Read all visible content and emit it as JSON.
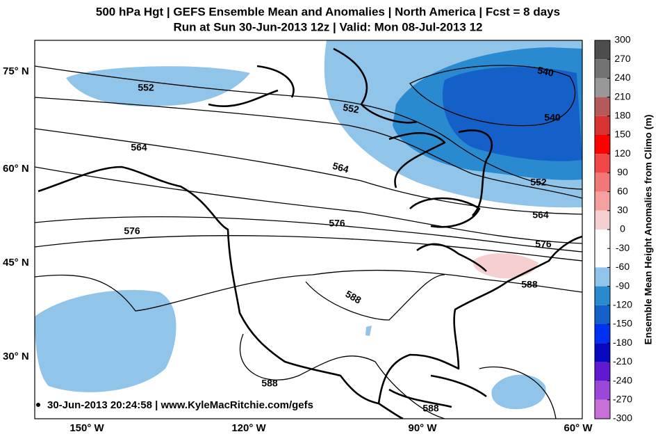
{
  "header": {
    "title": "500 hPa Hgt | GEFS Ensemble Mean and Anomalies | North America | Fcst = 8 days",
    "subtitle": "Run at Sun 30-Jun-2013 12z | Valid: Mon 08-Jul-2013 12"
  },
  "map": {
    "lat_labels": [
      "75° N",
      "60° N",
      "45° N",
      "30° N"
    ],
    "lon_labels": [
      "150° W",
      "120° W",
      "90° W",
      "60° W"
    ],
    "contour_labels": [
      "552",
      "540",
      "540",
      "552",
      "564",
      "564",
      "552",
      "564",
      "576",
      "576",
      "576",
      "588",
      "588",
      "588",
      "588"
    ],
    "footer": "30-Jun-2013 20:24:58 | www.KyleMacRitchie.com/gefs"
  },
  "colorbar": {
    "label": "Ensemble Mean Height Anomalies from Climo (m)",
    "ticks": [
      300,
      270,
      240,
      210,
      180,
      150,
      120,
      90,
      60,
      30,
      0,
      -30,
      -60,
      -90,
      -120,
      -150,
      -180,
      -210,
      -240,
      -270,
      -300
    ],
    "colors": [
      "#4d4d4d",
      "#727272",
      "#989898",
      "#b45a5a",
      "#d83232",
      "#ff0000",
      "#f04848",
      "#f07878",
      "#f4a0a0",
      "#f6d0d0",
      "#ffffff",
      "#ffffff",
      "#90c4e8",
      "#2a8ad0",
      "#1460c8",
      "#0030f0",
      "#0808c0",
      "#6018d0",
      "#9a48d8",
      "#c870d8",
      "#ff98d0"
    ]
  }
}
